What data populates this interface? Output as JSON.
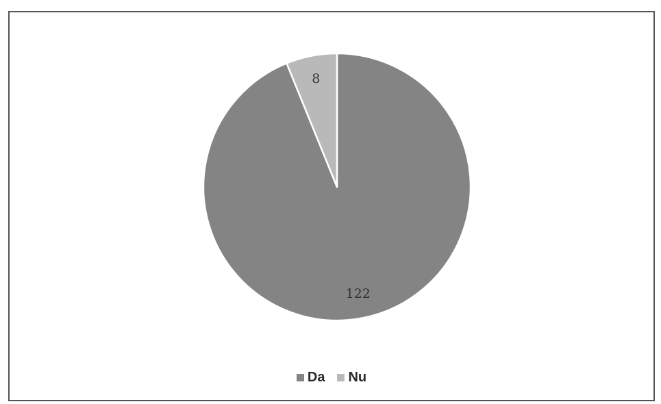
{
  "chart_data": {
    "type": "pie",
    "title": "",
    "start_angle_deg": 0,
    "direction": "clockwise",
    "series": [
      {
        "slices": [
          {
            "label": "Da",
            "value": 122,
            "color": "#848484"
          },
          {
            "label": "Nu",
            "value": 8,
            "color": "#b9b9b9"
          }
        ]
      }
    ],
    "data_labels": [
      "122",
      "8"
    ],
    "legend": {
      "placement": "bottom",
      "entries": [
        "Da",
        "Nu"
      ]
    }
  }
}
